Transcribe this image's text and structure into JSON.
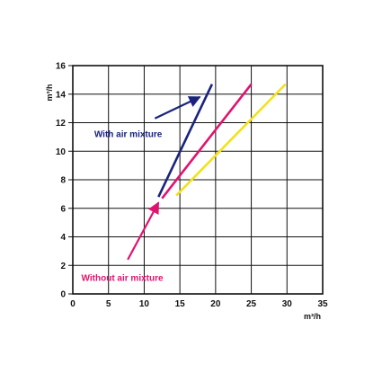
{
  "chart_data": {
    "type": "line",
    "ylabel": "m³/h",
    "xlabel": "m³/h",
    "xlim": [
      0,
      35
    ],
    "ylim": [
      0,
      16
    ],
    "xticks": [
      0,
      5,
      10,
      15,
      20,
      25,
      30,
      35
    ],
    "yticks": [
      0,
      2,
      4,
      6,
      8,
      10,
      12,
      14,
      16
    ],
    "grid": true,
    "series": [
      {
        "color": "#1a237e",
        "points": [
          [
            12.0,
            6.8
          ],
          [
            19.5,
            14.7
          ]
        ]
      },
      {
        "color": "#e0136f",
        "points": [
          [
            12.5,
            6.7
          ],
          [
            25.0,
            14.7
          ]
        ]
      },
      {
        "color": "#f2e21c",
        "points": [
          [
            14.5,
            6.9
          ],
          [
            29.8,
            14.7
          ]
        ]
      }
    ],
    "annotations": [
      {
        "text": "With air mixture",
        "color": "#1a237e",
        "x": 3.0,
        "y": 11.0,
        "arrow_from": [
          11.5,
          12.3
        ],
        "arrow_to": [
          17.8,
          13.8
        ]
      },
      {
        "text": "Without air mixture",
        "color": "#e0136f",
        "x": 1.2,
        "y": 0.9,
        "arrow_from": [
          7.7,
          2.4
        ],
        "arrow_to": [
          12.0,
          6.4
        ]
      }
    ]
  }
}
